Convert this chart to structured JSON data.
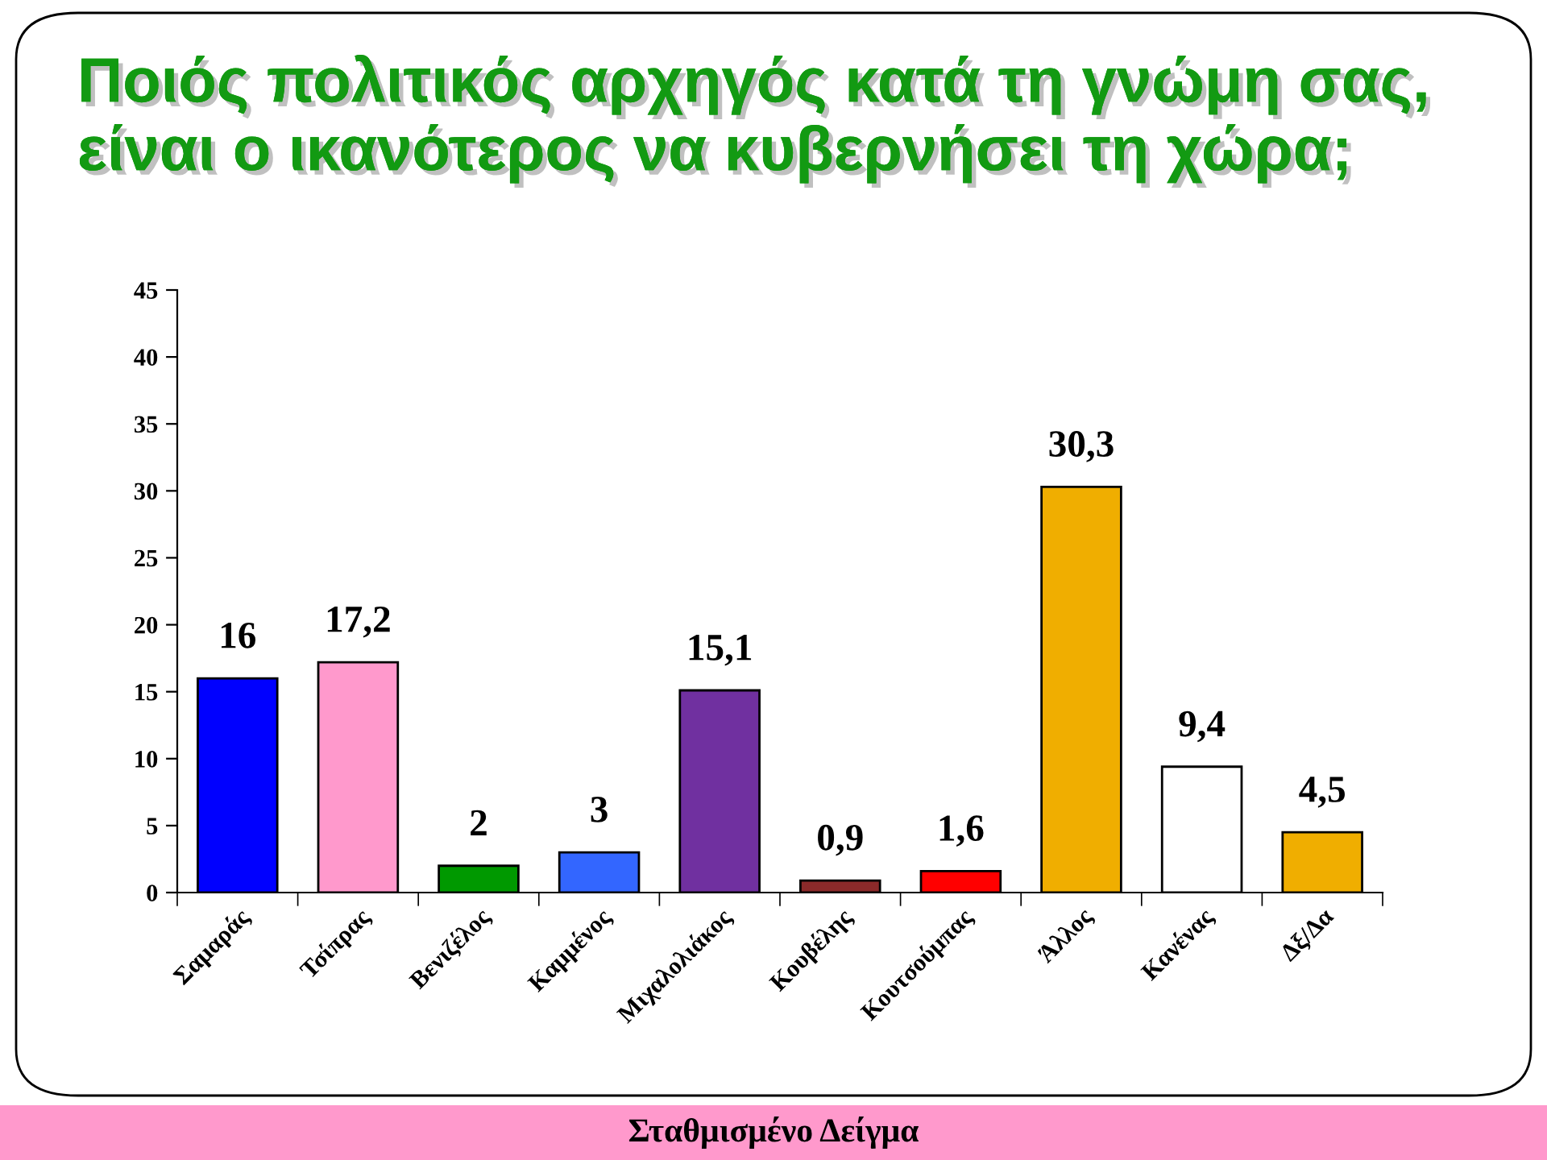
{
  "chart_data": {
    "type": "bar",
    "title": "Ποιός πολιτικός αρχηγός κατά τη γνώμη σας,\nείναι ο ικανότερος να κυβερνήσει τη χώρα;",
    "categories": [
      "Σαμαράς",
      "Τσίπρας",
      "Βενιζέλος",
      "Καμμένος",
      "Μιχαλολιάκος",
      "Κουβέλης",
      "Κουτσούμπας",
      "Άλλος",
      "Κανένας",
      "Δξ/Δα"
    ],
    "values": [
      16,
      17.2,
      2,
      3,
      15.1,
      0.9,
      1.6,
      30.3,
      9.4,
      4.5
    ],
    "colors": [
      "#0000ff",
      "#ff99cc",
      "#009900",
      "#3366ff",
      "#7030a0",
      "#8b2a2a",
      "#ff0000",
      "#f0ae00",
      "#ffffff",
      "#f0ae00"
    ],
    "value_labels": [
      "16",
      "17,2",
      "2",
      "3",
      "15,1",
      "0,9",
      "1,6",
      "30,3",
      "9,4",
      "4,5"
    ],
    "ylim": [
      0,
      45
    ],
    "yticks": [
      0,
      5,
      10,
      15,
      20,
      25,
      30,
      35,
      40,
      45
    ],
    "annotations": [
      "Σταθμισμένο Δείγμα"
    ]
  }
}
